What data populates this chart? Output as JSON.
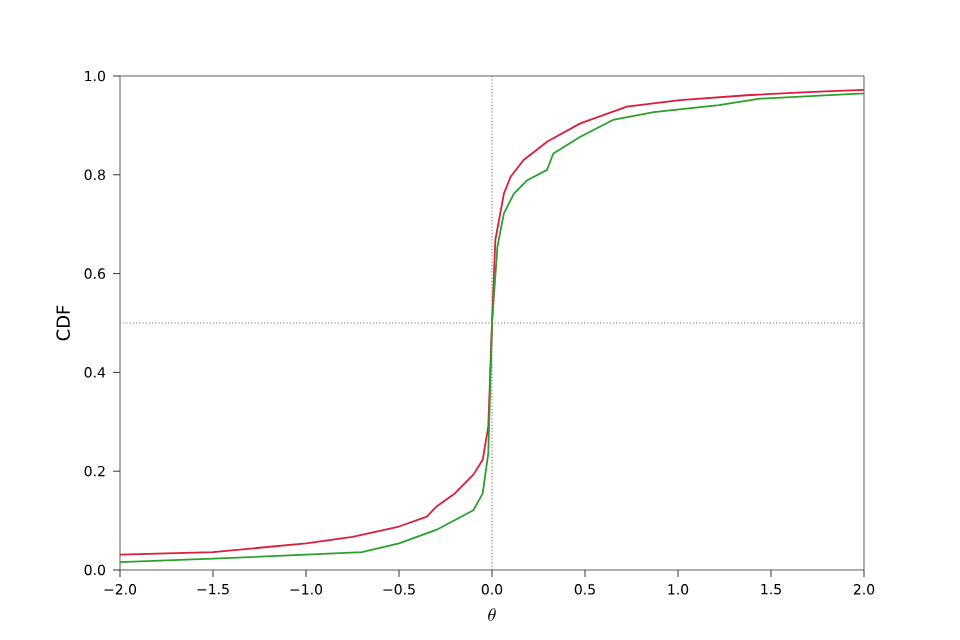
{
  "chart_data": {
    "type": "line",
    "xlabel": "\\theta",
    "ylabel": "CDF",
    "xlim": [
      -2,
      2
    ],
    "ylim": [
      0,
      1
    ],
    "xticks": [
      {
        "value": -2,
        "label": "−2.0"
      },
      {
        "value": -1.5,
        "label": "−1.5"
      },
      {
        "value": -1,
        "label": "−1.0"
      },
      {
        "value": -0.5,
        "label": "−0.5"
      },
      {
        "value": 0,
        "label": "0.0"
      },
      {
        "value": 0.5,
        "label": "0.5"
      },
      {
        "value": 1,
        "label": "1.0"
      },
      {
        "value": 1.5,
        "label": "1.5"
      },
      {
        "value": 2,
        "label": "2.0"
      }
    ],
    "yticks": [
      {
        "value": 0,
        "label": "0.0"
      },
      {
        "value": 0.2,
        "label": "0.2"
      },
      {
        "value": 0.4,
        "label": "0.4"
      },
      {
        "value": 0.6,
        "label": "0.6"
      },
      {
        "value": 0.8,
        "label": "0.8"
      },
      {
        "value": 1,
        "label": "1.0"
      }
    ],
    "grid": false,
    "marker": "none",
    "line_style": "solid",
    "ref_lines": [
      {
        "axis": "x",
        "value": 0,
        "color": "#808080",
        "line_style": "dotted"
      },
      {
        "axis": "y",
        "value": 0.5,
        "color": "#808080",
        "line_style": "dotted"
      }
    ],
    "series": [
      {
        "color": "#dc1e3c",
        "x": [
          -2,
          -1.5,
          -1,
          -0.75,
          -0.5,
          -0.35,
          -0.3,
          -0.2,
          -0.1,
          -0.05,
          -0.02,
          0,
          0.018,
          0.064,
          0.1,
          0.17,
          0.3,
          0.475,
          0.725,
          1.01,
          1.37,
          1.725,
          2
        ],
        "values": [
          0.031,
          0.036,
          0.054,
          0.067,
          0.088,
          0.108,
          0.128,
          0.155,
          0.193,
          0.223,
          0.29,
          0.5,
          0.668,
          0.762,
          0.796,
          0.83,
          0.868,
          0.904,
          0.938,
          0.951,
          0.961,
          0.968,
          0.972
        ]
      },
      {
        "color": "#2ca02c",
        "x": [
          -2,
          -1.5,
          -1,
          -0.7,
          -0.5,
          -0.3,
          -0.2,
          -0.1,
          -0.05,
          -0.02,
          0,
          0.029,
          0.064,
          0.118,
          0.19,
          0.296,
          0.33,
          0.475,
          0.65,
          0.87,
          1.22,
          1.44,
          2
        ],
        "values": [
          0.016,
          0.023,
          0.031,
          0.036,
          0.054,
          0.081,
          0.101,
          0.121,
          0.155,
          0.236,
          0.5,
          0.654,
          0.722,
          0.762,
          0.789,
          0.81,
          0.843,
          0.877,
          0.911,
          0.927,
          0.941,
          0.954,
          0.965
        ]
      }
    ]
  }
}
